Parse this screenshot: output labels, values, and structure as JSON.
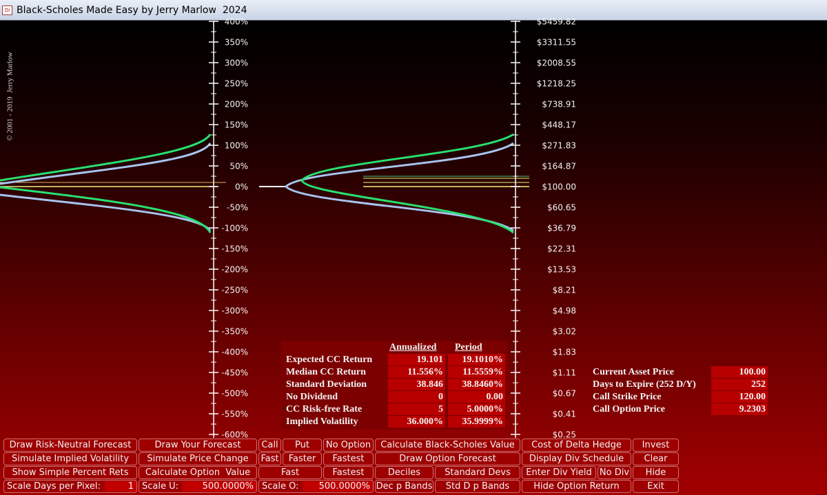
{
  "window": {
    "icon": "Di",
    "title": "Black-Scholes Made Easy by Jerry Marlow  2024"
  },
  "copyright": "© 2001 - 2019  Jerry Marlow",
  "return_axis": [
    "400%",
    "350%",
    "300%",
    "250%",
    "200%",
    "150%",
    "100%",
    "50%",
    "0%",
    "-50%",
    "-100%",
    "-150%",
    "-200%",
    "-250%",
    "-300%",
    "-350%",
    "-400%",
    "-450%",
    "-500%",
    "-550%",
    "-600%"
  ],
  "price_axis": [
    "$5459.82",
    "$3311.55",
    "$2008.55",
    "$1218.25",
    "$738.91",
    "$448.17",
    "$271.83",
    "$164.87",
    "$100.00",
    "$60.65",
    "$36.79",
    "$22.31",
    "$13.53",
    "$8.21",
    "$4.98",
    "$3.02",
    "$1.83",
    "$1.11",
    "$0.67",
    "$0.41",
    "$0.25"
  ],
  "stats": {
    "headers": [
      "Annualized",
      "Period"
    ],
    "rows": [
      [
        "Expected CC Return",
        "19.101",
        "19.1010%"
      ],
      [
        "Median CC Return",
        "11.556%",
        "11.5559%"
      ],
      [
        "Standard Deviation",
        "38.846",
        "38.8460%"
      ],
      [
        "No Dividend",
        "0",
        "0.00"
      ],
      [
        "CC Risk-free Rate",
        "5",
        "5.0000%"
      ],
      [
        "Implied Volatility",
        "36.000%",
        "35.9999%"
      ]
    ]
  },
  "inputs": [
    [
      "Current Asset Price",
      "100.00"
    ],
    [
      "Days to Expire (252 D/Y)",
      "252"
    ],
    [
      "Call Strike Price",
      "120.00"
    ],
    [
      "Call Option Price",
      "9.2303"
    ]
  ],
  "buttons": [
    [
      {
        "label": "Draw Risk-Neutral Forecast"
      },
      {
        "label": "Draw Your Forecast"
      },
      {
        "label": "Call"
      },
      {
        "label": "Put"
      },
      {
        "label": "No Option"
      },
      {
        "label": "Calculate Black-Scholes Value"
      },
      {
        "label": "Cost of Delta Hedge"
      },
      {
        "label": "Invest"
      }
    ],
    [
      {
        "label": "Simulate Implied Volatility"
      },
      {
        "label": "Simulate Price Change"
      },
      {
        "label": "Fast"
      },
      {
        "label": "Faster"
      },
      {
        "label": "Fastest"
      },
      {
        "label": "Draw Option Forecast"
      },
      {
        "label": "Display Div Schedule"
      },
      {
        "label": "Clear"
      }
    ],
    [
      {
        "label": "Show Simple Percent Rets"
      },
      {
        "label": "Calculate Option  Value"
      },
      {
        "label": "Fast"
      },
      {
        "label": "Fastest"
      },
      {
        "label": "Deciles"
      },
      {
        "label": "Standard Devs"
      },
      {
        "label": "Enter Div Yield"
      },
      {
        "label": "No Div"
      },
      {
        "label": "Hide"
      }
    ],
    [
      {
        "label": "Scale Days per Pixel:",
        "value": "1"
      },
      {
        "label": "Scale U:",
        "value": "500.0000%"
      },
      {
        "label": "Scale O:",
        "value": "500.0000%"
      },
      {
        "label": "Dec p Bands"
      },
      {
        "label": "Std D p Bands"
      },
      {
        "label": "Hide Option Return"
      },
      {
        "label": "Exit"
      }
    ]
  ]
}
